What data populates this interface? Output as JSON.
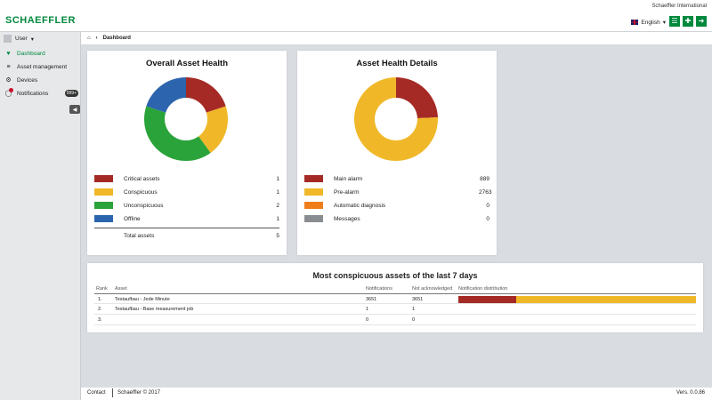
{
  "header": {
    "logo": "SCHAEFFLER",
    "company": "Schaeffler International",
    "language": "English",
    "accent_color": "#00893d",
    "buttons": [
      {
        "icon": "menu-icon"
      },
      {
        "icon": "plus-move-icon"
      },
      {
        "icon": "logout-icon"
      }
    ]
  },
  "sidebar": {
    "user_label": "User",
    "items": [
      {
        "label": "Dashboard",
        "icon": "heartbeat-icon",
        "active": true
      },
      {
        "label": "Asset management",
        "icon": "sliders-icon"
      },
      {
        "label": "Devices",
        "icon": "devices-icon"
      },
      {
        "label": "Notifications",
        "icon": "chat-icon",
        "badge": "999+"
      }
    ]
  },
  "breadcrumb": {
    "home_icon": "home-icon",
    "current": "Dashboard"
  },
  "overall": {
    "title": "Overall Asset Health",
    "legend": [
      {
        "label": "Critical assets",
        "count": "1",
        "color": "#a52a25"
      },
      {
        "label": "Conspicuous",
        "count": "1",
        "color": "#f0b829"
      },
      {
        "label": "Unconspicuous",
        "count": "2",
        "color": "#2aa33a"
      },
      {
        "label": "Offline",
        "count": "1",
        "color": "#2c64ad"
      }
    ],
    "total_label": "Total assets",
    "total": "5"
  },
  "details": {
    "title": "Asset Health Details",
    "legend": [
      {
        "label": "Main alarm",
        "count": "889",
        "color": "#a52a25"
      },
      {
        "label": "Pre-alarm",
        "count": "2763",
        "color": "#f0b829"
      },
      {
        "label": "Automatic diagnosis",
        "count": "0",
        "color": "#ef7d1a"
      },
      {
        "label": "Messages",
        "count": "0",
        "color": "#8a8d90"
      }
    ]
  },
  "table": {
    "title": "Most conspicuous assets of the last 7 days",
    "headers": {
      "rank": "Rank",
      "asset": "Asset",
      "notifications": "Notifications",
      "not_ack": "Not acknowledged",
      "dist": "Notification distribution"
    },
    "rows": [
      {
        "rank": "1.",
        "asset": "Testaufbau - Jede Minute",
        "notifications": "3651",
        "not_ack": "3651",
        "dist_main_fraction": 0.243
      },
      {
        "rank": "2.",
        "asset": "Testaufbau - Base measurement job",
        "notifications": "1",
        "not_ack": "1",
        "dist_main_fraction": null
      },
      {
        "rank": "3.",
        "asset": "",
        "notifications": "0",
        "not_ack": "0",
        "dist_main_fraction": null
      }
    ]
  },
  "footer": {
    "contact": "Contact",
    "copyright": "Schaeffler © 2017",
    "version": "Vers. 0.0.86"
  }
}
